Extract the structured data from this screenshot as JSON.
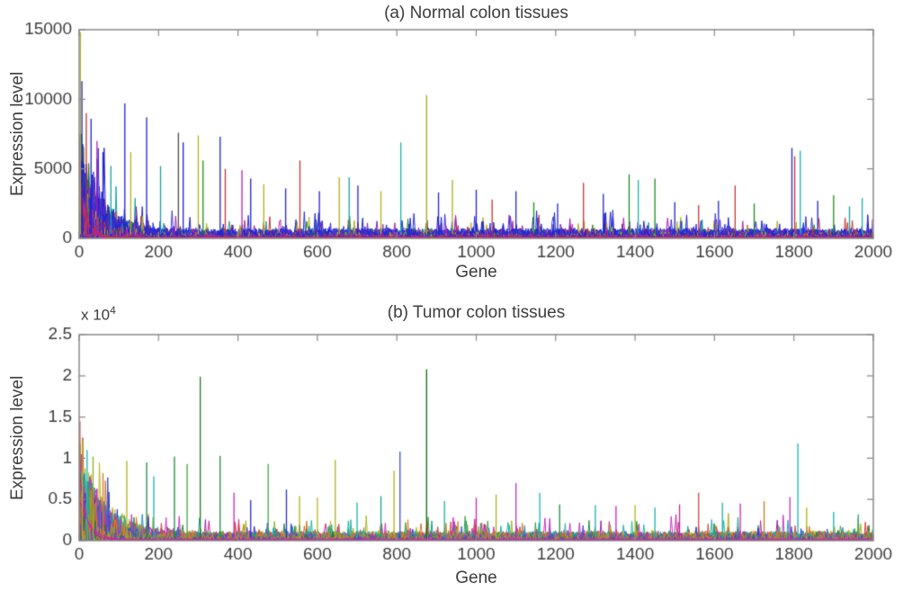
{
  "figure": {
    "background": "#ffffff",
    "axis_color": "#8a8a8a",
    "text_color": "#3d3d3d"
  },
  "chart_data": [
    {
      "type": "line",
      "title": "(a) Normal colon tissues",
      "xlabel": "Gene",
      "ylabel": "Expression level",
      "xlim": [
        0,
        2000
      ],
      "ylim": [
        0,
        15000
      ],
      "xticks": [
        0,
        200,
        400,
        600,
        800,
        1000,
        1200,
        1400,
        1600,
        1800,
        2000
      ],
      "xtick_labels": [
        "0",
        "200",
        "400",
        "600",
        "800",
        "1000",
        "1200",
        "1400",
        "1600",
        "1800",
        "2000"
      ],
      "yticks": [
        0,
        5000,
        10000,
        15000
      ],
      "ytick_labels": [
        "0",
        "5000",
        "10000",
        "15000"
      ],
      "grid": false,
      "legend": null,
      "description": "Many overlapping spiky per-sample traces of gene expression, blue-dominant mix of MATLAB line colors, high dense mass near gene 0 decaying rightward",
      "n_series": 40,
      "seed": 7,
      "roughness": 2.3,
      "envelope": {
        "start": 6200,
        "tau": 50,
        "base": 550
      },
      "baseline_curves": [
        {
          "start": 5200,
          "tau": 14,
          "base": 60,
          "color": "#d8189c"
        },
        {
          "start": 3000,
          "tau": 22,
          "base": 40,
          "color": "#c43434"
        }
      ],
      "series_colors": [
        "#2222d0",
        "#c43434",
        "#2a2ad8",
        "#b022b0",
        "#2222d0",
        "#b0b018",
        "#3232e0",
        "#18a0a0",
        "#2222d0",
        "#c43434",
        "#2a2ae0",
        "#8822aa",
        "#2222d0",
        "#1e8c1e",
        "#3a3ad8",
        "#b0b018",
        "#2222d0",
        "#c43434",
        "#2a2ad0",
        "#b022b0"
      ],
      "peaks": [
        [
          3,
          14800,
          "#b0b018"
        ],
        [
          7,
          11300,
          "#2222d0"
        ],
        [
          18,
          9000,
          "#c43434"
        ],
        [
          30,
          8600,
          "#2222d0"
        ],
        [
          45,
          7000,
          "#b022b0"
        ],
        [
          60,
          6200,
          "#2222d0"
        ],
        [
          80,
          5200,
          "#18a0a0"
        ],
        [
          115,
          9700,
          "#2222d0"
        ],
        [
          130,
          6200,
          "#b0b018"
        ],
        [
          170,
          8700,
          "#2222d0"
        ],
        [
          205,
          5200,
          "#18a0a0"
        ],
        [
          250,
          7600,
          "#4a4a4a"
        ],
        [
          262,
          6900,
          "#2222d0"
        ],
        [
          300,
          7400,
          "#b0b018"
        ],
        [
          312,
          5600,
          "#1e8c1e"
        ],
        [
          355,
          7300,
          "#2222d0"
        ],
        [
          368,
          5000,
          "#c43434"
        ],
        [
          410,
          4900,
          "#b022b0"
        ],
        [
          432,
          4300,
          "#2222d0"
        ],
        [
          465,
          3900,
          "#b0b018"
        ],
        [
          520,
          3600,
          "#2222d0"
        ],
        [
          556,
          5600,
          "#c43434"
        ],
        [
          605,
          3400,
          "#2222d0"
        ],
        [
          655,
          4400,
          "#b0b018"
        ],
        [
          680,
          4400,
          "#18a0a0"
        ],
        [
          702,
          3800,
          "#2222d0"
        ],
        [
          760,
          3400,
          "#b0b018"
        ],
        [
          810,
          6900,
          "#18b0b0"
        ],
        [
          875,
          10300,
          "#a8a810"
        ],
        [
          905,
          3300,
          "#2222d0"
        ],
        [
          940,
          4200,
          "#b0b018"
        ],
        [
          1000,
          3500,
          "#2222d0"
        ],
        [
          1040,
          2800,
          "#c43434"
        ],
        [
          1100,
          3400,
          "#2222d0"
        ],
        [
          1145,
          2600,
          "#1e8c1e"
        ],
        [
          1205,
          2500,
          "#2222d0"
        ],
        [
          1270,
          4000,
          "#c43434"
        ],
        [
          1320,
          3200,
          "#2222d0"
        ],
        [
          1385,
          4600,
          "#1e8c1e"
        ],
        [
          1408,
          4200,
          "#18b0b0"
        ],
        [
          1450,
          4300,
          "#1e8c1e"
        ],
        [
          1500,
          2600,
          "#2222d0"
        ],
        [
          1560,
          2400,
          "#c43434"
        ],
        [
          1610,
          2700,
          "#2222d0"
        ],
        [
          1652,
          3800,
          "#c43434"
        ],
        [
          1700,
          2500,
          "#1e8c1e"
        ],
        [
          1795,
          6500,
          "#2222d0"
        ],
        [
          1802,
          5900,
          "#c43434"
        ],
        [
          1816,
          6300,
          "#18b0b0"
        ],
        [
          1860,
          2700,
          "#2222d0"
        ],
        [
          1900,
          3100,
          "#1e8c1e"
        ],
        [
          1940,
          2300,
          "#18a0a0"
        ],
        [
          1972,
          2900,
          "#18b0b0"
        ]
      ]
    },
    {
      "type": "line",
      "title": "(b) Tumor colon tissues",
      "xlabel": "Gene",
      "ylabel": "Expression level",
      "y_multiplier_base": "x 10",
      "y_multiplier_exp": "4",
      "xlim": [
        0,
        2000
      ],
      "ylim": [
        0,
        25000
      ],
      "xticks": [
        0,
        200,
        400,
        600,
        800,
        1000,
        1200,
        1400,
        1600,
        1800,
        2000
      ],
      "xtick_labels": [
        "0",
        "200",
        "400",
        "600",
        "800",
        "1000",
        "1200",
        "1400",
        "1600",
        "1800",
        "2000"
      ],
      "yticks": [
        0,
        5000,
        10000,
        15000,
        20000,
        25000
      ],
      "ytick_labels": [
        "0",
        "0.5",
        "1",
        "1.5",
        "2",
        "2.5"
      ],
      "grid": false,
      "legend": null,
      "description": "Many overlapping spiky per-sample traces, colorful teal/green/magenta/olive mix, dense magenta-bottomed mass near gene 0, tallest dark-green spike ~2.08e4 near gene 875",
      "n_series": 40,
      "seed": 13,
      "roughness": 2.0,
      "envelope": {
        "start": 8800,
        "tau": 62,
        "base": 900
      },
      "baseline_curves": [
        {
          "start": 9000,
          "tau": 16,
          "base": 120,
          "color": "#d8189c"
        },
        {
          "start": 5200,
          "tau": 26,
          "base": 80,
          "color": "#cc22bb"
        }
      ],
      "series_colors": [
        "#18b0b0",
        "#c2288c",
        "#8faa20",
        "#d04444",
        "#2a2ad8",
        "#b0b018",
        "#1e8c3c",
        "#cc22bb",
        "#20b4a4",
        "#cc7722",
        "#9922aa",
        "#44a044",
        "#2288cc",
        "#d04444",
        "#b8b820",
        "#18a088",
        "#c230c2",
        "#1e7e1e",
        "#3a50d0",
        "#d08822"
      ],
      "peaks": [
        [
          2,
          14500,
          "#d04444"
        ],
        [
          8,
          12200,
          "#b0b018"
        ],
        [
          20,
          11000,
          "#18b0b0"
        ],
        [
          35,
          10200,
          "#8faa20"
        ],
        [
          60,
          8200,
          "#cc7722"
        ],
        [
          120,
          9700,
          "#b0b018"
        ],
        [
          170,
          9500,
          "#1e8c3c"
        ],
        [
          188,
          7800,
          "#18b0b0"
        ],
        [
          240,
          10200,
          "#1e8c3c"
        ],
        [
          272,
          9300,
          "#44a044"
        ],
        [
          305,
          19900,
          "#1e7e1e"
        ],
        [
          355,
          10300,
          "#1e8c3c"
        ],
        [
          390,
          5800,
          "#cc22bb"
        ],
        [
          432,
          4900,
          "#2a2ad8"
        ],
        [
          476,
          9300,
          "#44a044"
        ],
        [
          522,
          6200,
          "#2a2ad8"
        ],
        [
          555,
          5400,
          "#b0b018"
        ],
        [
          600,
          5200,
          "#b8b820"
        ],
        [
          645,
          9800,
          "#b0b018"
        ],
        [
          700,
          4600,
          "#18b0b0"
        ],
        [
          760,
          5400,
          "#18a088"
        ],
        [
          793,
          8500,
          "#b0b018"
        ],
        [
          808,
          10800,
          "#3a50d0"
        ],
        [
          875,
          20800,
          "#0b6b0b"
        ],
        [
          920,
          4800,
          "#18b0b0"
        ],
        [
          1000,
          5200,
          "#cc22bb"
        ],
        [
          1050,
          5600,
          "#b0b018"
        ],
        [
          1100,
          7000,
          "#c230c2"
        ],
        [
          1160,
          5800,
          "#18b0b0"
        ],
        [
          1210,
          4400,
          "#1e8c3c"
        ],
        [
          1300,
          4300,
          "#18b0b0"
        ],
        [
          1352,
          4200,
          "#cc22bb"
        ],
        [
          1400,
          4300,
          "#b0b018"
        ],
        [
          1450,
          4000,
          "#18b0b0"
        ],
        [
          1512,
          4400,
          "#c2288c"
        ],
        [
          1560,
          5800,
          "#d04444"
        ],
        [
          1620,
          4600,
          "#18b0b0"
        ],
        [
          1665,
          4500,
          "#cc22bb"
        ],
        [
          1725,
          4800,
          "#cc7722"
        ],
        [
          1790,
          5300,
          "#c230c2"
        ],
        [
          1810,
          11800,
          "#18b0b0"
        ],
        [
          1832,
          4000,
          "#b0b018"
        ],
        [
          1900,
          3500,
          "#18b0b0"
        ],
        [
          1962,
          3200,
          "#18a088"
        ]
      ]
    }
  ]
}
